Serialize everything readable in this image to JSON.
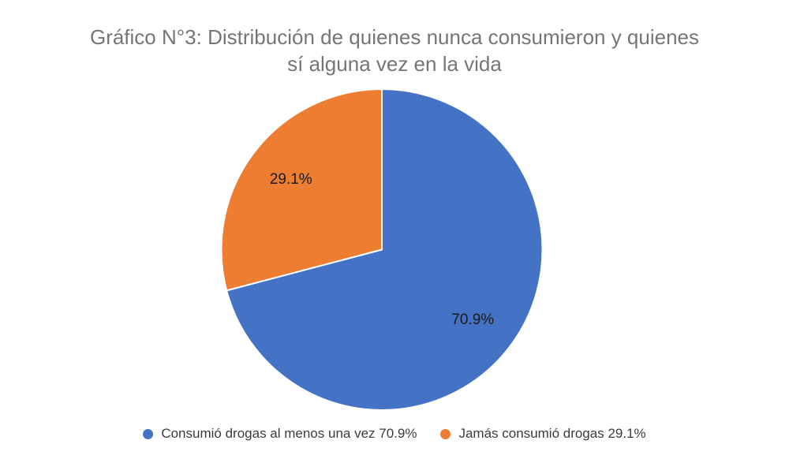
{
  "title": {
    "line1": "Gráfico N°3: Distribución de quienes nunca consumieron y quienes",
    "line2": "sí alguna vez en la vida"
  },
  "colors": {
    "background": "#ffffff",
    "title_text": "#757575",
    "slice_label_text": "#1a1a1a",
    "legend_text": "#3b3b3b",
    "slice_divider": "#ffffff",
    "blue": "#4472C4",
    "orange": "#ED7D31"
  },
  "chart_data": {
    "type": "pie",
    "title": "Gráfico N°3: Distribución de quienes nunca consumieron y quienes sí alguna vez en la vida",
    "start_angle_deg": 0,
    "direction": "clockwise",
    "legend_position": "bottom",
    "slices": [
      {
        "label": "Consumió drogas al menos una vez",
        "value": 70.9,
        "percent_label": "70.9%",
        "legend_label": "Consumió drogas al menos una vez 70.9%",
        "color": "#4472C4"
      },
      {
        "label": "Jamás consumió drogas",
        "value": 29.1,
        "percent_label": "29.1%",
        "legend_label": "Jamás consumió drogas 29.1%",
        "color": "#ED7D31"
      }
    ]
  }
}
